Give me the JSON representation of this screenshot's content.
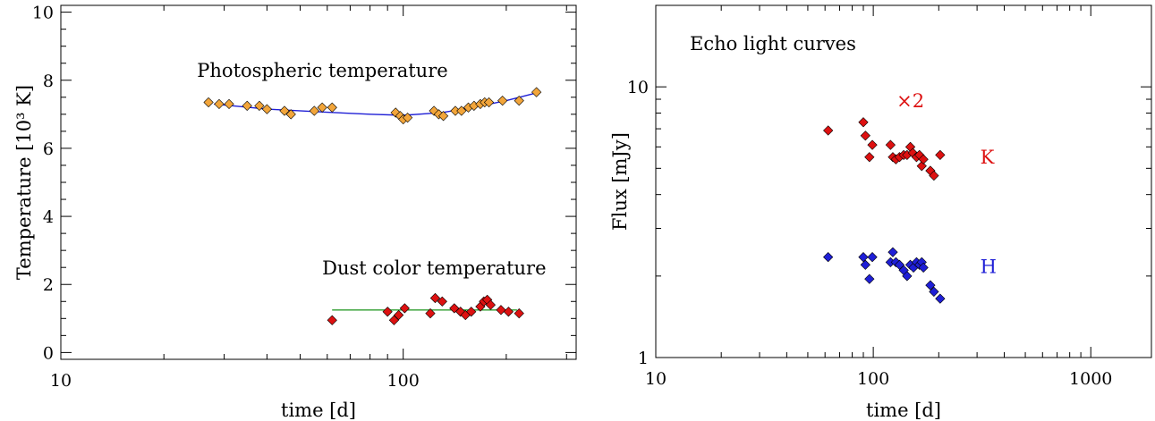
{
  "chart_data": [
    {
      "type": "scatter",
      "title": "",
      "xlabel": "time [d]",
      "ylabel": "Temperature [10³ K]",
      "xscale": "log",
      "xlim": [
        10,
        320
      ],
      "ylim": [
        -0.2,
        10.2
      ],
      "xticks": [
        10,
        100
      ],
      "xtick_labels": [
        "10",
        "100"
      ],
      "yticks": [
        0,
        2,
        4,
        6,
        8,
        10
      ],
      "ytick_labels": [
        "0",
        "2",
        "4",
        "6",
        "8",
        "10"
      ],
      "grid": false,
      "annotations": [
        {
          "text": "Photospheric temperature",
          "x": 25,
          "y": 8.1
        },
        {
          "text": "Dust color temperature",
          "x": 58,
          "y": 2.3
        }
      ],
      "series": [
        {
          "kind": "line",
          "color": "#1f1fd6",
          "x": [
            28,
            40,
            60,
            80,
            100,
            130,
            160,
            200,
            250
          ],
          "y": [
            7.3,
            7.15,
            7.06,
            7.0,
            6.97,
            7.05,
            7.2,
            7.4,
            7.65
          ]
        },
        {
          "kind": "markers",
          "marker": "diamond",
          "color": "#f2a53a",
          "x": [
            27,
            29,
            31,
            35,
            38,
            40,
            45,
            47,
            55,
            58,
            62,
            95,
            98,
            100,
            103,
            123,
            127,
            131,
            142,
            148,
            155,
            161,
            168,
            173,
            178,
            195,
            218,
            245
          ],
          "y": [
            7.35,
            7.3,
            7.3,
            7.25,
            7.25,
            7.15,
            7.1,
            7.0,
            7.1,
            7.2,
            7.2,
            7.05,
            6.95,
            6.85,
            6.9,
            7.1,
            7.0,
            6.95,
            7.1,
            7.1,
            7.2,
            7.25,
            7.3,
            7.35,
            7.35,
            7.4,
            7.4,
            7.65
          ]
        },
        {
          "kind": "line",
          "color": "#2e9d2e",
          "x": [
            62,
            215
          ],
          "y": [
            1.25,
            1.25
          ]
        },
        {
          "kind": "markers",
          "marker": "diamond",
          "color": "#dd1111",
          "x": [
            62,
            90,
            94,
            97,
            101,
            120,
            124,
            130,
            141,
            147,
            152,
            158,
            168,
            172,
            176,
            180,
            193,
            203,
            218
          ],
          "y": [
            0.95,
            1.2,
            0.95,
            1.1,
            1.3,
            1.15,
            1.6,
            1.5,
            1.3,
            1.2,
            1.1,
            1.2,
            1.35,
            1.5,
            1.55,
            1.4,
            1.25,
            1.2,
            1.15
          ]
        }
      ]
    },
    {
      "type": "scatter",
      "title": "Echo light curves",
      "xlabel": "time [d]",
      "ylabel": "Flux [mJy]",
      "xscale": "log",
      "yscale": "log",
      "xlim": [
        10,
        1900
      ],
      "ylim": [
        1,
        20
      ],
      "xticks": [
        10,
        100,
        1000
      ],
      "xtick_labels": [
        "10",
        "100",
        "1000"
      ],
      "yticks": [
        1,
        10
      ],
      "ytick_labels": [
        "1",
        "10"
      ],
      "grid": false,
      "annotations": [
        {
          "text": "×2",
          "x": 128,
          "y": 8.4,
          "color": "#dd1111"
        },
        {
          "text": "K",
          "x": 310,
          "y": 5.2,
          "color": "#dd1111"
        },
        {
          "text": "H",
          "x": 310,
          "y": 2.05,
          "color": "#1f1fd6"
        }
      ],
      "series": [
        {
          "name": "K",
          "kind": "markers",
          "marker": "diamond",
          "color": "#dd1111",
          "x": [
            62,
            90,
            92,
            96,
            99,
            120,
            123,
            127,
            132,
            138,
            143,
            148,
            152,
            158,
            163,
            167,
            170,
            183,
            190,
            203
          ],
          "y": [
            6.9,
            7.4,
            6.6,
            5.5,
            6.1,
            6.1,
            5.5,
            5.4,
            5.5,
            5.6,
            5.6,
            6.0,
            5.7,
            5.5,
            5.6,
            5.1,
            5.4,
            4.9,
            4.7,
            5.6
          ]
        },
        {
          "name": "H",
          "kind": "markers",
          "marker": "diamond",
          "color": "#1f1fd6",
          "x": [
            62,
            90,
            92,
            96,
            99,
            120,
            123,
            127,
            132,
            138,
            143,
            148,
            153,
            158,
            163,
            167,
            170,
            183,
            190,
            203
          ],
          "y": [
            2.35,
            2.35,
            2.2,
            1.95,
            2.35,
            2.25,
            2.45,
            2.25,
            2.2,
            2.1,
            2.0,
            2.2,
            2.15,
            2.25,
            2.2,
            2.25,
            2.15,
            1.85,
            1.75,
            1.65
          ]
        }
      ]
    }
  ]
}
